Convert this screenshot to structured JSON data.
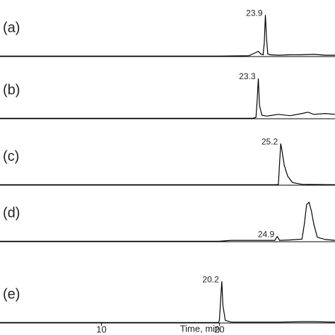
{
  "chart_data": [
    {
      "type": "line",
      "label": "(a)",
      "peak_label": "23.9",
      "xlim": [
        1.4,
        29.8
      ],
      "ylim": [
        0,
        100
      ],
      "x": [
        1.4,
        10,
        20,
        22.5,
        23.0,
        23.3,
        23.5,
        23.7,
        23.8,
        23.9,
        24.0,
        24.1,
        24.3,
        25,
        26,
        27,
        28,
        29,
        29.8
      ],
      "values": [
        1,
        1,
        1,
        2,
        8,
        12,
        6,
        4,
        30,
        95,
        40,
        6,
        4,
        3,
        4,
        4,
        5,
        3,
        3
      ]
    },
    {
      "type": "line",
      "label": "(b)",
      "peak_label": "23.3",
      "xlim": [
        1.4,
        29.8
      ],
      "ylim": [
        0,
        100
      ],
      "x": [
        1.4,
        10,
        20,
        22.8,
        23.1,
        23.2,
        23.3,
        23.4,
        23.6,
        24,
        25,
        26,
        27,
        27.5,
        28,
        29,
        29.8
      ],
      "values": [
        1,
        1,
        1,
        1,
        3,
        40,
        92,
        30,
        8,
        6,
        10,
        7,
        12,
        15,
        10,
        12,
        10
      ]
    },
    {
      "type": "line",
      "label": "(c)",
      "peak_label": "25.2",
      "xlim": [
        1.4,
        29.8
      ],
      "ylim": [
        0,
        100
      ],
      "x": [
        1.4,
        20,
        24.8,
        25.0,
        25.1,
        25.2,
        25.3,
        25.5,
        25.8,
        26.2,
        27,
        29.8
      ],
      "values": [
        1,
        1,
        1,
        2,
        50,
        95,
        80,
        45,
        20,
        6,
        2,
        1
      ]
    },
    {
      "type": "line",
      "label": "(d)",
      "peak_label": "24.9",
      "xlim": [
        1.4,
        29.8
      ],
      "ylim": [
        0,
        100
      ],
      "x": [
        1.4,
        20,
        21,
        24.7,
        24.9,
        25.1,
        26,
        27,
        27.2,
        27.4,
        27.6,
        27.8,
        28,
        28.3,
        29,
        29.8
      ],
      "values": [
        1,
        1,
        3,
        3,
        12,
        3,
        4,
        6,
        40,
        85,
        90,
        70,
        40,
        10,
        5,
        3
      ]
    },
    {
      "type": "line",
      "label": "(e)",
      "peak_label": "20.2",
      "xlim": [
        1.4,
        29.8
      ],
      "ylim": [
        0,
        100
      ],
      "x": [
        1.4,
        19.9,
        20.0,
        20.1,
        20.2,
        20.3,
        20.5,
        21,
        25,
        27,
        28,
        29.8
      ],
      "values": [
        1,
        1,
        5,
        50,
        95,
        40,
        6,
        2,
        2,
        3,
        3,
        2
      ],
      "xticks": [
        10,
        20
      ],
      "x_label": "Time, min"
    }
  ]
}
